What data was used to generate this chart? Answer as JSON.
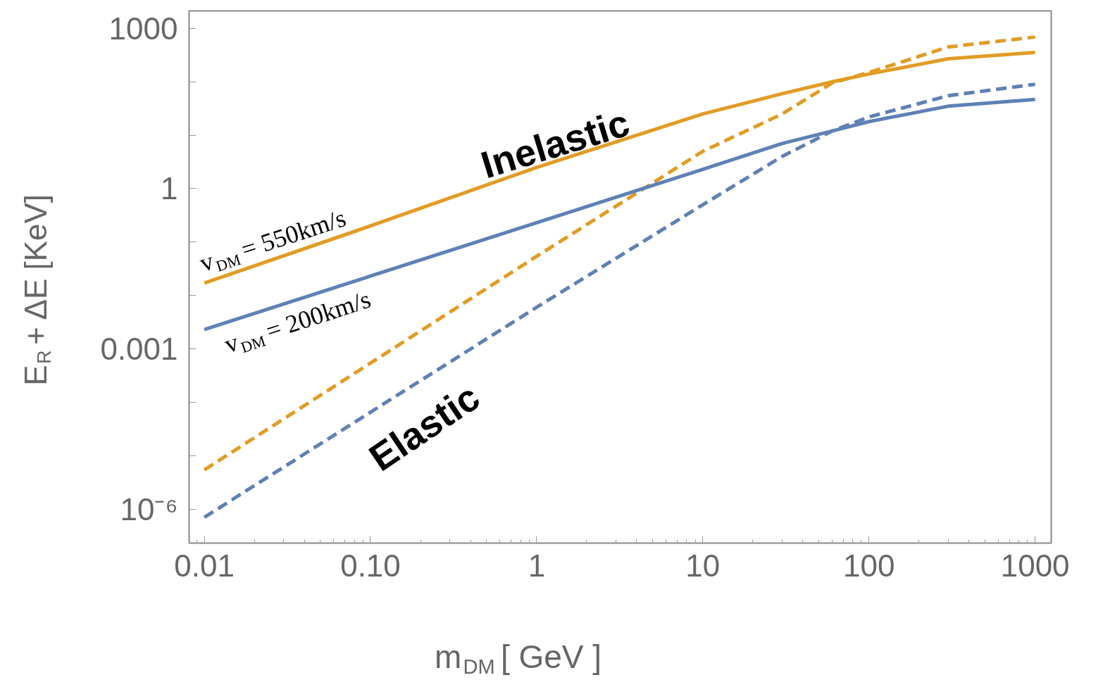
{
  "chart_data": {
    "type": "line",
    "xlabel": "m$_{DM}$ [ GeV ]",
    "ylabel": "E$_{R}$ + ΔE [KeV]",
    "log": "xy",
    "grid": false,
    "xlim": [
      0.0081,
      1250
    ],
    "ylim": [
      2.3e-07,
      2130
    ],
    "xticks": [
      0.01,
      {
        "value": 0.1,
        "label": "0.10"
      },
      1,
      10,
      100,
      1000
    ],
    "yticks": [
      {
        "value": 1e-06,
        "label": "10⁻⁶"
      },
      {
        "value": 1e-05,
        "label": null
      },
      {
        "value": 0.0001,
        "label": null
      },
      0.001,
      {
        "value": 0.01,
        "label": null
      },
      {
        "value": 0.1,
        "label": null
      },
      1,
      {
        "value": 10,
        "label": null
      },
      {
        "value": 100,
        "label": null
      },
      1000
    ],
    "x": [
      0.01,
      0.1,
      1,
      10,
      30,
      60,
      100,
      300,
      1000
    ],
    "series": [
      {
        "color": "#e19c24",
        "line_style": "solid",
        "values": [
          0.017,
          0.2,
          2.5,
          25,
          60,
          100,
          140,
          270,
          355
        ]
      },
      {
        "color": "#e19c24",
        "line_style": "dashed",
        "values": [
          5.4e-06,
          0.00054,
          0.054,
          5,
          25,
          95,
          150,
          450,
          690
        ]
      },
      {
        "color": "#5e81b5",
        "line_style": "solid",
        "values": [
          0.0023,
          0.023,
          0.23,
          2.3,
          7,
          12,
          18,
          35,
          47
        ]
      },
      {
        "color": "#5e81b5",
        "line_style": "dashed",
        "values": [
          7e-07,
          6.5e-05,
          0.006,
          0.5,
          4,
          12,
          22,
          55,
          90
        ]
      }
    ],
    "annotations": [
      "Inelastic",
      "Elastic",
      "v$_{DM}$ = 550km/s",
      "v$_{DM}$ = 200km/s"
    ]
  }
}
